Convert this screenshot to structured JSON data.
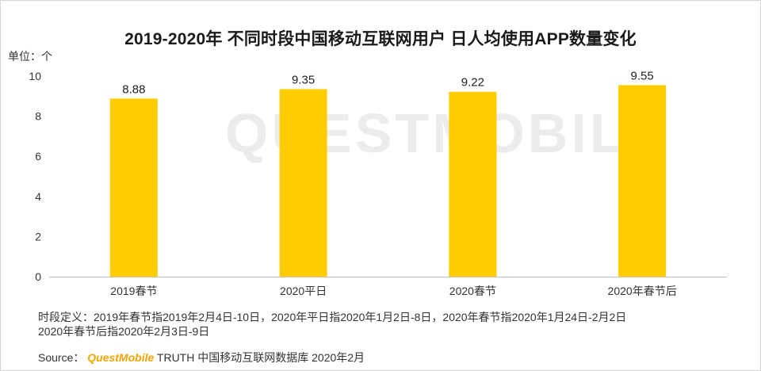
{
  "chart_data": {
    "type": "bar",
    "title": "2019-2020年 不同时段中国移动互联网用户 日人均使用APP数量变化",
    "unit_label": "单位：个",
    "categories": [
      "2019春节",
      "2020平日",
      "2020春节",
      "2020年春节后"
    ],
    "values": [
      8.88,
      9.35,
      9.22,
      9.55
    ],
    "value_labels": [
      "8.88",
      "9.35",
      "9.22",
      "9.55"
    ],
    "ylim": [
      0,
      10
    ],
    "yticks": [
      "0",
      "2",
      "4",
      "6",
      "8",
      "10"
    ],
    "grid": false,
    "bar_color": "#FFCC00"
  },
  "watermark": "QUESTMOBILE",
  "footnote": {
    "line1": "时段定义：2019年春节指2019年2月4日-10日，2020年平日指2020年1月2日-8日，2020年春节指2020年1月24日-2月2日",
    "line2": "2020年春节后指2020年2月3日-9日"
  },
  "source": {
    "prefix": "Source：",
    "brand": "QuestMobile",
    "rest": "TRUTH 中国移动互联网数据库 2020年2月"
  }
}
